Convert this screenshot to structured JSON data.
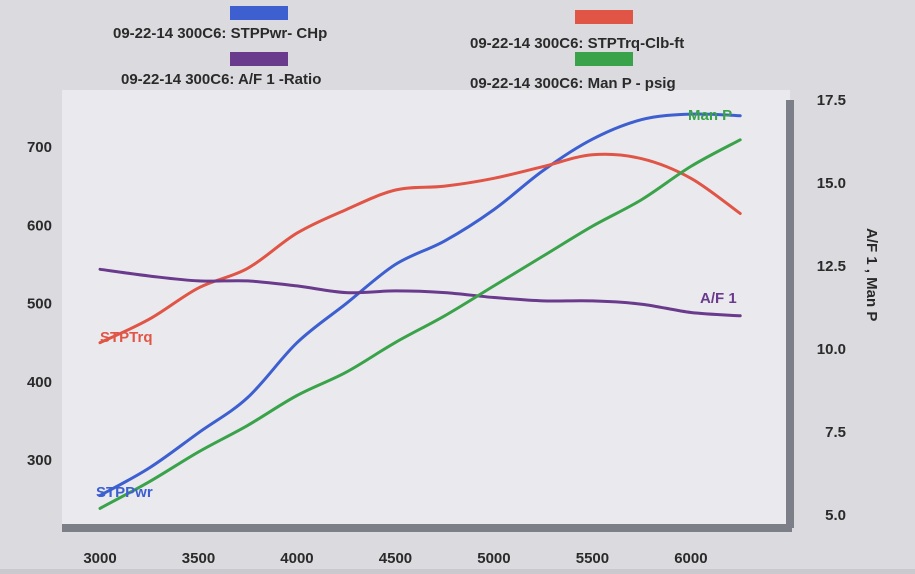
{
  "chart_data": {
    "type": "line",
    "x_ticks": [
      3000,
      3500,
      4000,
      4500,
      5000,
      5500,
      6000
    ],
    "xlim": [
      3000,
      6300
    ],
    "y_left_ticks": [
      300,
      400,
      500,
      600,
      700
    ],
    "y_left_lim": [
      230,
      760
    ],
    "y_right_ticks": [
      "5.0",
      "7.5",
      "10.0",
      "12.5",
      "15.0",
      "17.5"
    ],
    "y_right_lim": [
      5.0,
      17.5
    ],
    "y_right_label": "A/F 1 , Man P",
    "grid": false,
    "legend_position": "top",
    "series": [
      {
        "name": "09-22-14 300C6: STPPwr- CHp",
        "label": "STPPwr",
        "axis": "left",
        "color": "#3d5fd0",
        "x": [
          3000,
          3250,
          3500,
          3750,
          4000,
          4250,
          4500,
          4750,
          5000,
          5250,
          5500,
          5750,
          6000,
          6250
        ],
        "y": [
          255,
          290,
          335,
          380,
          450,
          500,
          550,
          580,
          620,
          670,
          710,
          735,
          742,
          740
        ]
      },
      {
        "name": "09-22-14 300C6: STPTrq-Clb-ft",
        "label": "STPTrq",
        "axis": "left",
        "color": "#e05545",
        "x": [
          3000,
          3250,
          3500,
          3750,
          4000,
          4250,
          4500,
          4750,
          5000,
          5250,
          5500,
          5750,
          6000,
          6250
        ],
        "y": [
          450,
          480,
          520,
          545,
          590,
          620,
          645,
          650,
          660,
          675,
          690,
          685,
          660,
          615
        ]
      },
      {
        "name": "09-22-14 300C6: A/F 1 -Ratio",
        "label": "A/F 1",
        "axis": "right",
        "color": "#6a3a8c",
        "x": [
          3000,
          3250,
          3500,
          3750,
          4000,
          4250,
          4500,
          4750,
          5000,
          5250,
          5500,
          5750,
          6000,
          6250
        ],
        "y": [
          12.4,
          12.2,
          12.05,
          12.05,
          11.9,
          11.7,
          11.75,
          11.7,
          11.55,
          11.45,
          11.45,
          11.35,
          11.1,
          11.0
        ]
      },
      {
        "name": "09-22-14 300C6: Man P - psig",
        "label": "Man P",
        "axis": "right",
        "color": "#3aa34a",
        "x": [
          3000,
          3250,
          3500,
          3750,
          4000,
          4250,
          4500,
          4750,
          5000,
          5250,
          5500,
          5750,
          6000,
          6250
        ],
        "y": [
          5.2,
          6.0,
          6.9,
          7.7,
          8.6,
          9.3,
          10.2,
          11.0,
          11.9,
          12.8,
          13.7,
          14.5,
          15.5,
          16.3
        ]
      }
    ]
  }
}
